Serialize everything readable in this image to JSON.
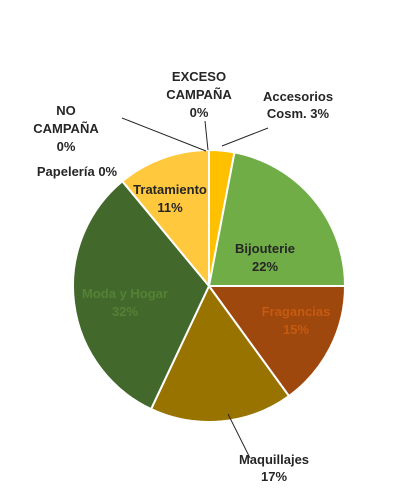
{
  "chart_data": {
    "type": "pie",
    "title": "",
    "start_angle_deg": 0,
    "direction": "clockwise",
    "slices": [
      {
        "label": "Accesorios Cosm.",
        "percent_label": "3%",
        "value": 3,
        "color": "#FFC000",
        "label_color": "#262626"
      },
      {
        "label": "Bijouterie",
        "percent_label": "22%",
        "value": 22,
        "color": "#70AD47",
        "label_color": "#262626"
      },
      {
        "label": "Fragancias",
        "percent_label": "15%",
        "value": 15,
        "color": "#9E480E",
        "label_color": "#C55A11"
      },
      {
        "label": "Maquillajes",
        "percent_label": "17%",
        "value": 17,
        "color": "#997300",
        "label_color": "#262626"
      },
      {
        "label": "Moda y Hogar",
        "percent_label": "32%",
        "value": 32,
        "color": "#43682B",
        "label_color": "#548235"
      },
      {
        "label": "Tratamiento",
        "percent_label": "11%",
        "value": 11,
        "color": "#FFC83D",
        "label_color": "#262626"
      },
      {
        "label": "Papelería",
        "percent_label": "0%",
        "value": 0,
        "color": "#FFFFFF",
        "label_color": "#262626"
      },
      {
        "label": "NO CAMPAÑA",
        "percent_label": "0%",
        "value": 0,
        "color": "#FFFFFF",
        "label_color": "#262626"
      },
      {
        "label": "EXCESO CAMPAÑA",
        "percent_label": "0%",
        "value": 0,
        "color": "#FFFFFF",
        "label_color": "#262626"
      }
    ]
  }
}
